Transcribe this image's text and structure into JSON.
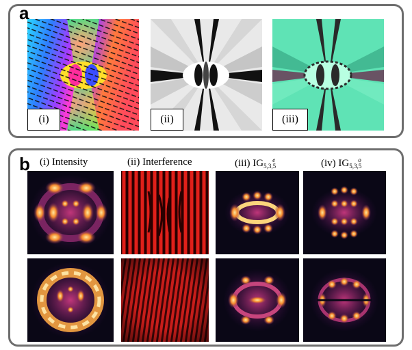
{
  "panel_a": {
    "letter": "a",
    "sublabels": [
      "(i)",
      "(ii)",
      "(iii)"
    ]
  },
  "panel_b": {
    "letter": "b",
    "columns": [
      {
        "text": "(i) Intensity",
        "ig": false
      },
      {
        "text": "(ii) Interference",
        "ig": false
      },
      {
        "text": "(iii) IG",
        "ig": true,
        "sub": "5,3,5",
        "sup": "e"
      },
      {
        "text": "(iv) IG",
        "ig": true,
        "sub": "5,3,5",
        "sup": "o"
      }
    ]
  },
  "colors": {
    "frame": "#6e6e6e",
    "inferno_dark": "#0a0716",
    "inferno_bright": "#fdf3b0",
    "interference_red": "#e0201a",
    "teal": "#57e2b0"
  }
}
